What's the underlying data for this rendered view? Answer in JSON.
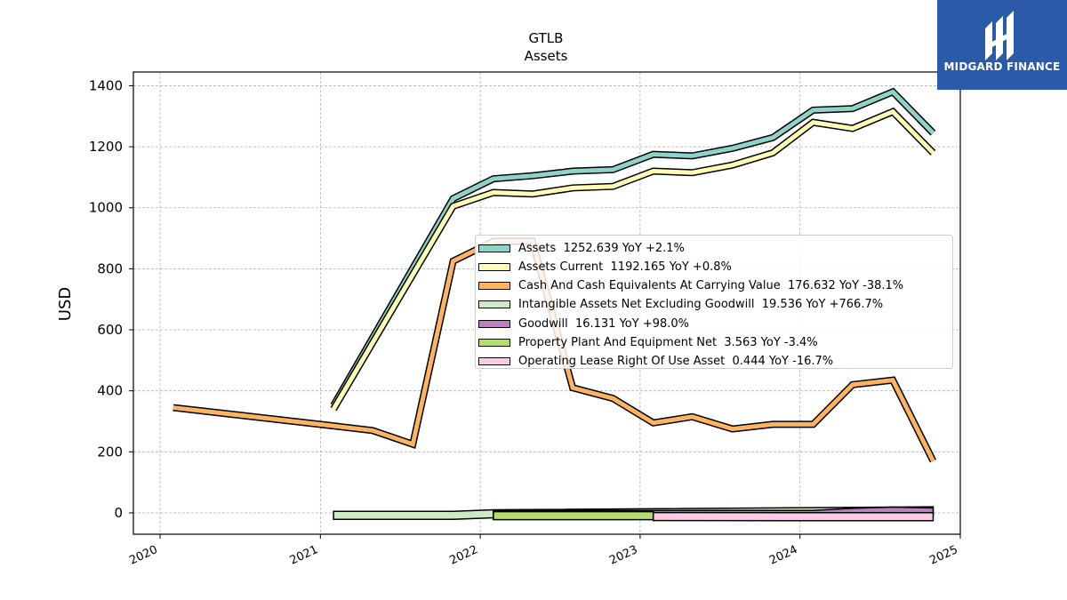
{
  "chart_data": {
    "type": "line",
    "title": "GTLB",
    "subtitle": "Assets",
    "ylabel": "USD",
    "xlabel": "",
    "ylim": [
      -70,
      1445
    ],
    "xlim": [
      "2019-11-01",
      "2025-01-01"
    ],
    "y_ticks": [
      0,
      200,
      400,
      600,
      800,
      1000,
      1200,
      1400
    ],
    "x_ticks": [
      "2020",
      "2021",
      "2022",
      "2023",
      "2024",
      "2025"
    ],
    "grid": true,
    "legend_position": "center-right",
    "series": [
      {
        "name": "Assets",
        "legend": "Assets  1252.639 YoY +2.1%",
        "color": "#8dd3c7",
        "style": "line",
        "points": [
          [
            "2021-01-31",
            352
          ],
          [
            "2021-10-31",
            1030
          ],
          [
            "2022-01-31",
            1095
          ],
          [
            "2022-04-30",
            1105
          ],
          [
            "2022-07-31",
            1120
          ],
          [
            "2022-10-31",
            1125
          ],
          [
            "2023-01-31",
            1175
          ],
          [
            "2023-04-30",
            1170
          ],
          [
            "2023-07-31",
            1195
          ],
          [
            "2023-10-31",
            1230
          ],
          [
            "2024-01-31",
            1320
          ],
          [
            "2024-04-30",
            1325
          ],
          [
            "2024-07-31",
            1380
          ],
          [
            "2024-10-31",
            1245
          ]
        ]
      },
      {
        "name": "Assets Current",
        "legend": "Assets Current  1192.165 YoY +0.8%",
        "color": "#ffffb3",
        "style": "line",
        "points": [
          [
            "2021-01-31",
            340
          ],
          [
            "2021-10-31",
            1005
          ],
          [
            "2022-01-31",
            1050
          ],
          [
            "2022-04-30",
            1045
          ],
          [
            "2022-07-31",
            1065
          ],
          [
            "2022-10-31",
            1070
          ],
          [
            "2023-01-31",
            1120
          ],
          [
            "2023-04-30",
            1115
          ],
          [
            "2023-07-31",
            1140
          ],
          [
            "2023-10-31",
            1180
          ],
          [
            "2024-01-31",
            1280
          ],
          [
            "2024-04-30",
            1260
          ],
          [
            "2024-07-31",
            1315
          ],
          [
            "2024-10-31",
            1180
          ]
        ]
      },
      {
        "name": "Cash And Cash Equivalents At Carrying Value",
        "legend": "Cash And Cash Equivalents At Carrying Value  176.632 YoY -38.1%",
        "color": "#fdb462",
        "style": "line",
        "points": [
          [
            "2020-01-31",
            345
          ],
          [
            "2021-01-31",
            285
          ],
          [
            "2021-04-30",
            270
          ],
          [
            "2021-07-31",
            225
          ],
          [
            "2021-10-31",
            825
          ],
          [
            "2022-01-31",
            890
          ],
          [
            "2022-04-30",
            890
          ],
          [
            "2022-07-31",
            410
          ],
          [
            "2022-10-31",
            375
          ],
          [
            "2023-01-31",
            295
          ],
          [
            "2023-04-30",
            315
          ],
          [
            "2023-07-31",
            275
          ],
          [
            "2023-10-31",
            290
          ],
          [
            "2024-01-31",
            290
          ],
          [
            "2024-04-30",
            420
          ],
          [
            "2024-07-31",
            435
          ],
          [
            "2024-10-31",
            170
          ]
        ]
      },
      {
        "name": "Intangible Assets Net Excluding Goodwill",
        "legend": "Intangible Assets Net Excluding Goodwill  19.536 YoY +766.7%",
        "color": "#ccebc5",
        "style": "band",
        "points": [
          [
            "2021-01-31",
            5
          ],
          [
            "2021-10-31",
            5
          ],
          [
            "2022-01-31",
            10
          ],
          [
            "2024-10-31",
            20
          ]
        ]
      },
      {
        "name": "Goodwill",
        "legend": "Goodwill  16.131 YoY +98.0%",
        "color": "#bc80bd",
        "style": "band",
        "points": [
          [
            "2022-01-31",
            8
          ],
          [
            "2024-01-31",
            8
          ],
          [
            "2024-04-30",
            15
          ],
          [
            "2024-07-31",
            19
          ],
          [
            "2024-10-31",
            16
          ]
        ]
      },
      {
        "name": "Property Plant And Equipment Net",
        "legend": "Property Plant And Equipment Net  3.563 YoY -3.4%",
        "color": "#b3de69",
        "style": "band",
        "points": [
          [
            "2022-01-31",
            4
          ],
          [
            "2023-01-31",
            4
          ]
        ]
      },
      {
        "name": "Operating Lease Right Of Use Asset",
        "legend": "Operating Lease Right Of Use Asset  0.444 YoY -16.7%",
        "color": "#fccde5",
        "style": "band",
        "points": [
          [
            "2023-01-31",
            1
          ],
          [
            "2024-10-31",
            0.5
          ]
        ]
      }
    ]
  },
  "logo": {
    "text": "MIDGARD FINANCE",
    "color": "#2b5aa8"
  }
}
